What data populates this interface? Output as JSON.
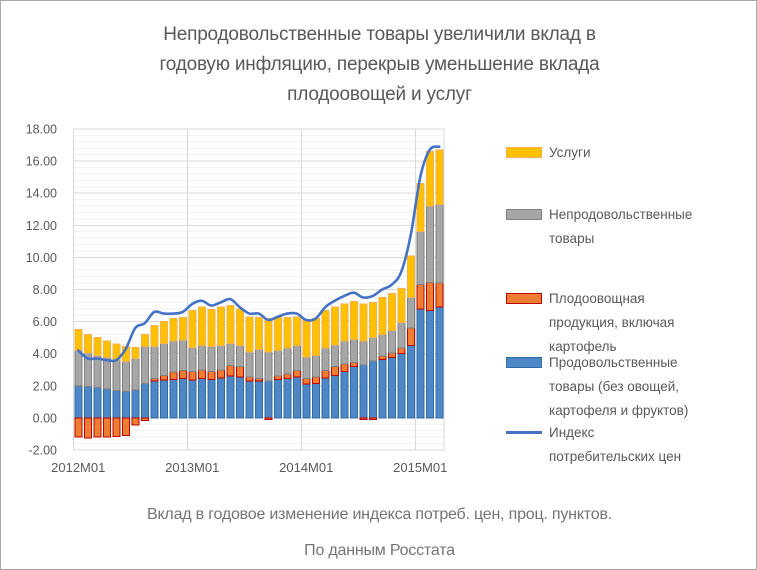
{
  "page": {
    "background": "#FFFFFF",
    "frame_border": "#A9A9A9"
  },
  "chart_data": {
    "type": "stacked-bar-with-line",
    "title": "Непродовольственные товары увеличили вклад в годовую инфляцию, перекрыв уменьшение вклада плодоовощей и услуг",
    "title_lines": [
      "Непродовольственные товары увеличили вклад в",
      "годовую  инфляцию, перекрыв уменьшение вклада",
      "плодоовощей и услуг"
    ],
    "caption_lines": [
      "Вклад в годовое изменение  индекса потреб. цен, проц. пунктов.",
      "По данным Росстата"
    ],
    "categories": [
      "2012M01",
      "2012M02",
      "2012M03",
      "2012M04",
      "2012M05",
      "2012M06",
      "2012M07",
      "2012M08",
      "2012M09",
      "2012M10",
      "2012M11",
      "2012M12",
      "2013M01",
      "2013M02",
      "2013M03",
      "2013M04",
      "2013M05",
      "2013M06",
      "2013M07",
      "2013M08",
      "2013M09",
      "2013M10",
      "2013M11",
      "2013M12",
      "2014M01",
      "2014M02",
      "2014M03",
      "2014M04",
      "2014M05",
      "2014M06",
      "2014M07",
      "2014M08",
      "2014M09",
      "2014M10",
      "2014M11",
      "2014M12",
      "2015M01",
      "2015M02",
      "2015M03"
    ],
    "y_axis": {
      "min": -2,
      "max": 18,
      "major_step": 2,
      "minor_step": 0.4,
      "ticks": [
        {
          "value": 18,
          "label": "18.00"
        },
        {
          "value": 16,
          "label": "16.00"
        },
        {
          "value": 14,
          "label": "14.00"
        },
        {
          "value": 12,
          "label": "12.00"
        },
        {
          "value": 10,
          "label": "10.00"
        },
        {
          "value": 8,
          "label": "8.00"
        },
        {
          "value": 6,
          "label": "6.00"
        },
        {
          "value": 4,
          "label": "4.00"
        },
        {
          "value": 2,
          "label": "2.00"
        },
        {
          "value": 0,
          "label": "0.00"
        },
        {
          "value": -2,
          "label": "-2.00"
        }
      ]
    },
    "x_axis": {
      "ticks": [
        {
          "index": 0,
          "label": "2012M01"
        },
        {
          "index": 12,
          "label": "2013M01"
        },
        {
          "index": 24,
          "label": "2014M01"
        },
        {
          "index": 36,
          "label": "2015M01"
        }
      ]
    },
    "series": [
      {
        "key": "food",
        "name": "Продовольственные товары (без овощей, картофеля и фруктов)",
        "fill": "#4F86C6",
        "border": "#2E6CA8",
        "values": [
          2.0,
          1.95,
          1.9,
          1.8,
          1.7,
          1.65,
          1.75,
          2.15,
          2.3,
          2.35,
          2.4,
          2.45,
          2.35,
          2.45,
          2.4,
          2.5,
          2.6,
          2.55,
          2.3,
          2.3,
          2.3,
          2.4,
          2.45,
          2.55,
          2.1,
          2.15,
          2.5,
          2.65,
          2.9,
          3.2,
          3.3,
          3.55,
          3.65,
          3.75,
          4.0,
          4.5,
          6.8,
          6.7,
          6.9
        ]
      },
      {
        "key": "fruitveg",
        "name": "Плодоовощная продукция, включая картофель",
        "fill": "#ED7D31",
        "border": "#C00000",
        "values": [
          -1.2,
          -1.25,
          -1.2,
          -1.2,
          -1.15,
          -1.1,
          -0.45,
          -0.15,
          0.15,
          0.3,
          0.45,
          0.5,
          0.55,
          0.55,
          0.5,
          0.5,
          0.65,
          0.65,
          0.25,
          0.15,
          -0.1,
          0.2,
          0.3,
          0.4,
          0.35,
          0.4,
          0.45,
          0.55,
          0.45,
          0.25,
          -0.1,
          -0.1,
          0.2,
          0.3,
          0.35,
          1.1,
          1.5,
          1.75,
          1.5
        ]
      },
      {
        "key": "nonfood",
        "name": "Непродовольственные товары",
        "fill": "#A6A6A6",
        "border": "#7F7F7F",
        "values": [
          2.2,
          2.1,
          2.0,
          1.95,
          1.9,
          1.85,
          1.95,
          2.3,
          2.0,
          2.0,
          1.95,
          1.9,
          1.5,
          1.5,
          1.55,
          1.5,
          1.4,
          1.3,
          1.55,
          1.8,
          1.8,
          1.6,
          1.6,
          1.55,
          1.35,
          1.35,
          1.4,
          1.35,
          1.45,
          1.45,
          1.5,
          1.45,
          1.35,
          1.4,
          1.6,
          1.9,
          3.3,
          4.75,
          4.9
        ]
      },
      {
        "key": "services",
        "name": "Услуги",
        "fill": "#FFC000",
        "border": "#F6B14E",
        "values": [
          1.3,
          1.15,
          1.1,
          1.05,
          1.0,
          0.95,
          0.7,
          0.75,
          1.3,
          1.35,
          1.4,
          1.4,
          2.3,
          2.4,
          2.3,
          2.4,
          2.35,
          2.3,
          2.2,
          2.0,
          2.1,
          2.1,
          1.9,
          1.8,
          2.3,
          2.3,
          2.35,
          2.35,
          2.3,
          2.35,
          2.3,
          2.2,
          2.3,
          2.3,
          2.1,
          2.6,
          3.0,
          3.4,
          3.4
        ]
      }
    ],
    "line_series": {
      "key": "cpi",
      "name": "Индекс потребительских цен",
      "color": "#4472C4",
      "values": [
        4.2,
        3.7,
        3.7,
        3.6,
        3.6,
        4.3,
        5.6,
        5.9,
        6.6,
        6.5,
        6.5,
        6.6,
        7.1,
        7.3,
        7.0,
        7.2,
        7.4,
        6.9,
        6.5,
        6.5,
        6.1,
        6.3,
        6.5,
        6.5,
        6.1,
        6.2,
        6.9,
        7.3,
        7.6,
        7.8,
        7.5,
        7.6,
        8.0,
        8.3,
        9.1,
        11.4,
        15.0,
        16.7,
        16.9
      ]
    },
    "legend": {
      "position": "right",
      "items": [
        {
          "label_lines": [
            "Услуги"
          ],
          "swatch": "box",
          "fill": "#FFC000",
          "border": "#F6B14E",
          "top": 140
        },
        {
          "label_lines": [
            "Непродовольственные",
            "товары"
          ],
          "swatch": "box",
          "fill": "#A6A6A6",
          "border": "#7F7F7F",
          "top": 202
        },
        {
          "label_lines": [
            "Плодоовощная",
            "продукция, включая",
            "картофель"
          ],
          "swatch": "box",
          "fill": "#ED7D31",
          "border": "#C00000",
          "top": 286
        },
        {
          "label_lines": [
            "Продовольственные",
            "товары (без овощей,",
            "картофеля и фруктов)"
          ],
          "swatch": "box",
          "fill": "#4F86C6",
          "border": "#2E6CA8",
          "top": 350
        },
        {
          "label_lines": [
            "Индекс",
            "потребительских цен"
          ],
          "swatch": "line",
          "fill": "#4472C4",
          "border": "#4472C4",
          "top": 420
        }
      ]
    },
    "grid": {
      "major_color": "#D9D9D9",
      "minor_color": "#F2F2F2",
      "plot_border": "#D9D9D9"
    },
    "text_colors": {
      "title": "#595959",
      "axis": "#595959",
      "caption": "#747474",
      "legend": "#595959"
    }
  }
}
